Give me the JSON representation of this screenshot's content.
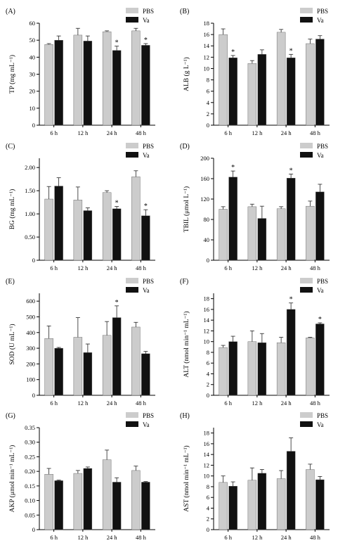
{
  "legend": {
    "pbs": "PBS",
    "va": "Va"
  },
  "colors": {
    "pbs": "#cccccc",
    "va": "#111111",
    "axis": "#000000"
  },
  "categories": [
    "6 h",
    "12 h",
    "24 h",
    "48 h"
  ],
  "star": "*",
  "chart_data": [
    {
      "type": "bar",
      "panel": "(A)",
      "ylabel": "TP (mg mL⁻¹)",
      "ylim": [
        0,
        60
      ],
      "yticks": [
        0,
        10,
        20,
        30,
        40,
        50,
        60
      ],
      "categories": [
        "6 h",
        "12 h",
        "24 h",
        "48 h"
      ],
      "series": [
        {
          "name": "PBS",
          "values": [
            47.5,
            53,
            55,
            55.5
          ],
          "errors": [
            0.5,
            4,
            0.5,
            1.5
          ]
        },
        {
          "name": "Va",
          "values": [
            50,
            49.5,
            44,
            47
          ],
          "errors": [
            2.5,
            3,
            2.5,
            1
          ],
          "significant": [
            false,
            false,
            true,
            true
          ]
        }
      ],
      "legend_position": "top-right"
    },
    {
      "type": "bar",
      "panel": "(B)",
      "ylabel": "ALB (g L⁻¹)",
      "ylim": [
        0,
        18
      ],
      "yticks": [
        0,
        2,
        4,
        6,
        8,
        10,
        12,
        14,
        16,
        18
      ],
      "categories": [
        "6 h",
        "12 h",
        "24 h",
        "48 h"
      ],
      "series": [
        {
          "name": "PBS",
          "values": [
            16,
            10.9,
            16.4,
            14.4
          ],
          "errors": [
            1,
            0.5,
            0.5,
            0.8
          ]
        },
        {
          "name": "Va",
          "values": [
            11.9,
            12.5,
            11.9,
            15.2
          ],
          "errors": [
            0.4,
            0.8,
            0.6,
            0.6
          ],
          "significant": [
            true,
            false,
            true,
            false
          ]
        }
      ],
      "legend_position": "top-right"
    },
    {
      "type": "bar",
      "panel": "(C)",
      "ylabel": "BG (mg mL⁻¹)",
      "ylim": [
        0,
        2.2
      ],
      "yticks": [
        0,
        0.5,
        1.0,
        1.5,
        2.0
      ],
      "categories": [
        "6 h",
        "12 h",
        "24 h",
        "48 h"
      ],
      "series": [
        {
          "name": "PBS",
          "values": [
            1.32,
            1.3,
            1.46,
            1.8
          ],
          "errors": [
            0.27,
            0.28,
            0.04,
            0.13
          ]
        },
        {
          "name": "Va",
          "values": [
            1.6,
            1.07,
            1.11,
            0.96
          ],
          "errors": [
            0.18,
            0.06,
            0.05,
            0.13
          ],
          "significant": [
            false,
            false,
            true,
            true
          ]
        }
      ],
      "legend_position": "top-right"
    },
    {
      "type": "bar",
      "panel": "(D)",
      "ylabel": "TBIL (μmol L⁻¹)",
      "ylim": [
        0,
        200
      ],
      "yticks": [
        0,
        40,
        80,
        120,
        160,
        200
      ],
      "categories": [
        "6 h",
        "12 h",
        "24 h",
        "48 h"
      ],
      "series": [
        {
          "name": "PBS",
          "values": [
            100,
            105,
            101,
            106
          ],
          "errors": [
            5,
            5,
            4,
            10
          ]
        },
        {
          "name": "Va",
          "values": [
            163,
            82,
            161,
            134
          ],
          "errors": [
            12,
            24,
            8,
            15
          ],
          "significant": [
            true,
            false,
            true,
            false
          ]
        }
      ],
      "legend_position": "top-right"
    },
    {
      "type": "bar",
      "panel": "(E)",
      "ylabel": "SOD (U mL⁻¹)",
      "ylim": [
        0,
        650
      ],
      "yticks": [
        0,
        100,
        200,
        300,
        400,
        500,
        600
      ],
      "categories": [
        "6 h",
        "12 h",
        "24 h",
        "48 h"
      ],
      "series": [
        {
          "name": "PBS",
          "values": [
            362,
            370,
            382,
            435
          ],
          "errors": [
            80,
            125,
            88,
            30
          ]
        },
        {
          "name": "Va",
          "values": [
            300,
            272,
            495,
            265
          ],
          "errors": [
            5,
            55,
            75,
            15
          ],
          "significant": [
            false,
            false,
            true,
            false
          ]
        }
      ],
      "legend_position": "top-right"
    },
    {
      "type": "bar",
      "panel": "(F)",
      "ylabel": "ALT (nmol min⁻¹ mL⁻¹)",
      "ylim": [
        0,
        19
      ],
      "yticks": [
        0,
        2,
        4,
        6,
        8,
        10,
        12,
        14,
        16,
        18
      ],
      "categories": [
        "6 h",
        "12 h",
        "24 h",
        "48 h"
      ],
      "series": [
        {
          "name": "PBS",
          "values": [
            8.9,
            10,
            9.8,
            10.7
          ],
          "errors": [
            0.4,
            2,
            1,
            0.1
          ]
        },
        {
          "name": "Va",
          "values": [
            10,
            9.8,
            16,
            13.3
          ],
          "errors": [
            1,
            1.7,
            1.2,
            0.2
          ],
          "significant": [
            false,
            false,
            true,
            true
          ]
        }
      ],
      "legend_position": "top-right"
    },
    {
      "type": "bar",
      "panel": "(G)",
      "ylabel": "AKP (μmol min⁻¹ mL⁻¹)",
      "ylim": [
        0,
        0.35
      ],
      "yticks": [
        0,
        0.05,
        0.1,
        0.15,
        0.2,
        0.25,
        0.3,
        0.35
      ],
      "categories": [
        "6 h",
        "12 h",
        "24 h",
        "48 h"
      ],
      "series": [
        {
          "name": "PBS",
          "values": [
            0.19,
            0.193,
            0.24,
            0.203
          ],
          "errors": [
            0.02,
            0.01,
            0.033,
            0.015
          ]
        },
        {
          "name": "Va",
          "values": [
            0.168,
            0.21,
            0.163,
            0.163
          ],
          "errors": [
            0.002,
            0.005,
            0.015,
            0.002
          ],
          "significant": [
            false,
            false,
            false,
            false
          ]
        }
      ],
      "legend_position": "top-right"
    },
    {
      "type": "bar",
      "panel": "(H)",
      "ylabel": "AST (nmol min⁻¹ mL⁻¹)",
      "ylim": [
        0,
        19
      ],
      "yticks": [
        0,
        2,
        4,
        6,
        8,
        10,
        12,
        14,
        16,
        18
      ],
      "categories": [
        "6 h",
        "12 h",
        "24 h",
        "48 h"
      ],
      "series": [
        {
          "name": "PBS",
          "values": [
            8.8,
            9.2,
            9.5,
            11.2
          ],
          "errors": [
            1.2,
            2.3,
            1.5,
            1
          ]
        },
        {
          "name": "Va",
          "values": [
            8.1,
            10.5,
            14.6,
            9.3
          ],
          "errors": [
            0.8,
            0.7,
            2.5,
            0.6
          ],
          "significant": [
            false,
            false,
            false,
            false
          ]
        }
      ],
      "legend_position": "top-right"
    }
  ]
}
